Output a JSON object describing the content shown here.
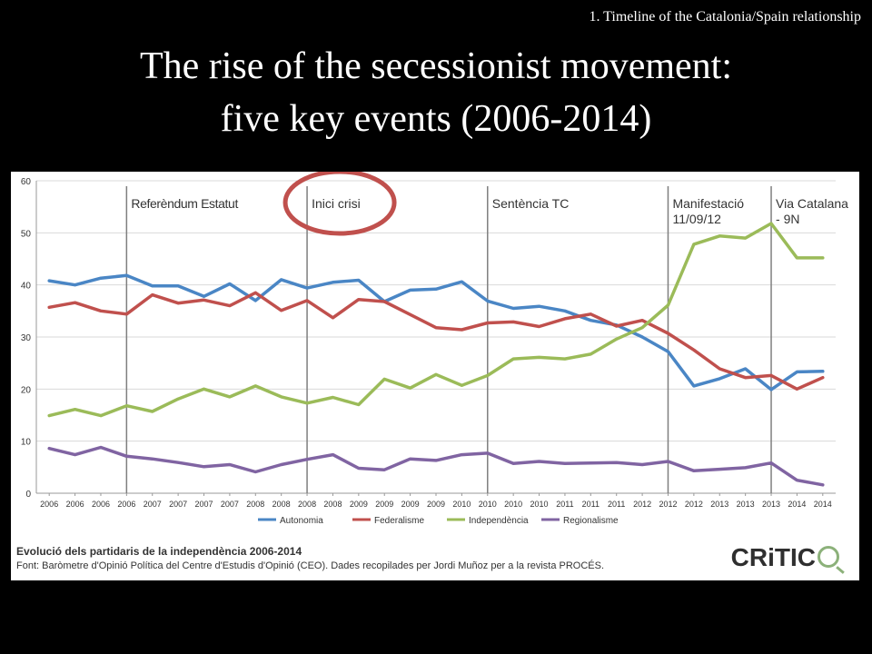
{
  "slide": {
    "tag": "1. Timeline of the Catalonia/Spain relationship",
    "title_line1": "The rise of the secessionist movement:",
    "title_line2": "five key events (2006-2014)"
  },
  "chart_footer": {
    "title": "Evolució dels partidaris de la independència 2006-2014",
    "source": "Font: Baròmetre d'Opinió Política del Centre d'Estudis d'Opinió (CEO). Dades recopilades per Jordi Muñoz per a la revista PROCÉS.",
    "brand": "CRiTIC"
  },
  "colors": {
    "autonomia": "#4a86c5",
    "federalisme": "#c0504d",
    "independencia": "#9bbb59",
    "regionalisme": "#8064a2",
    "highlight_circle": "#c0504d"
  },
  "chart_data": {
    "type": "line",
    "x": [
      "2006",
      "2006",
      "2006",
      "2006",
      "2007",
      "2007",
      "2007",
      "2007",
      "2008",
      "2008",
      "2008",
      "2008",
      "2009",
      "2009",
      "2009",
      "2009",
      "2010",
      "2010",
      "2010",
      "2010",
      "2011",
      "2011",
      "2011",
      "2012",
      "2012",
      "2012",
      "2013",
      "2013",
      "2013",
      "2014",
      "2014"
    ],
    "ylim": [
      0,
      60
    ],
    "yticks": [
      0,
      10,
      20,
      30,
      40,
      50,
      60
    ],
    "grid": true,
    "legend": "bottom",
    "series": [
      {
        "name": "Autonomia",
        "color_key": "autonomia",
        "values": [
          40.8,
          40.0,
          41.3,
          41.8,
          39.8,
          39.8,
          37.8,
          40.2,
          37.0,
          41.0,
          39.4,
          40.5,
          40.9,
          36.8,
          39.0,
          39.2,
          40.6,
          36.9,
          35.5,
          35.9,
          35.0,
          33.2,
          32.3,
          30.0,
          27.2,
          20.6,
          22.0,
          23.9,
          19.9,
          23.3,
          23.4
        ]
      },
      {
        "name": "Federalisme",
        "color_key": "federalisme",
        "values": [
          35.7,
          36.6,
          35.0,
          34.4,
          38.1,
          36.5,
          37.1,
          36.0,
          38.5,
          35.1,
          37.0,
          33.7,
          37.2,
          36.8,
          34.3,
          31.8,
          31.4,
          32.7,
          32.9,
          32.0,
          33.5,
          34.4,
          32.1,
          33.2,
          30.7,
          27.5,
          23.9,
          22.2,
          22.6,
          20.0,
          22.2
        ]
      },
      {
        "name": "Independència",
        "color_key": "independencia",
        "values": [
          14.9,
          16.1,
          14.9,
          16.8,
          15.7,
          18.1,
          20.0,
          18.5,
          20.6,
          18.5,
          17.3,
          18.4,
          17.0,
          21.9,
          20.2,
          22.8,
          20.7,
          22.6,
          25.8,
          26.1,
          25.8,
          26.7,
          29.6,
          31.8,
          36.1,
          47.8,
          49.4,
          49.0,
          51.8,
          45.2,
          45.2
        ]
      },
      {
        "name": "Regionalisme",
        "color_key": "regionalisme",
        "values": [
          8.6,
          7.4,
          8.8,
          7.1,
          6.6,
          5.9,
          5.1,
          5.5,
          4.1,
          5.5,
          6.5,
          7.4,
          4.8,
          4.5,
          6.6,
          6.3,
          7.4,
          7.7,
          5.7,
          6.1,
          5.7,
          5.8,
          5.9,
          5.5,
          6.1,
          4.3,
          4.6,
          4.9,
          5.8,
          2.5,
          1.6
        ]
      }
    ],
    "events": [
      {
        "label": "Referèndum Estatut",
        "label2": "",
        "index": 3
      },
      {
        "label": "Inici crisi",
        "label2": "",
        "index": 10
      },
      {
        "label": "Sentència TC",
        "label2": "",
        "index": 17
      },
      {
        "label": "Manifestació",
        "label2": "11/09/12",
        "index": 24
      },
      {
        "label": "Via Catalana",
        "label2": "- 9N",
        "index": 28
      }
    ],
    "highlighted_event": "Inici crisi"
  }
}
